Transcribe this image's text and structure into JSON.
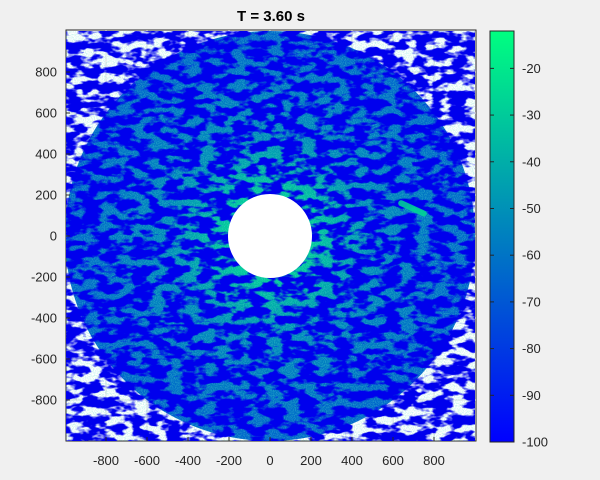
{
  "chart_data": {
    "type": "heatmap",
    "plot_kind": "polar-radar-intensity",
    "title": "T = 3.60 s",
    "xlabel": "",
    "ylabel": "",
    "xlim": [
      -1000,
      1000
    ],
    "ylim": [
      -1000,
      1000
    ],
    "x_ticks": [
      -800,
      -600,
      -400,
      -200,
      0,
      200,
      400,
      600,
      800
    ],
    "y_ticks": [
      -800,
      -600,
      -400,
      -200,
      0,
      200,
      400,
      600,
      800
    ],
    "grid": true,
    "outer_radius": 1000,
    "inner_radius": 205,
    "colorbar": {
      "range": [
        -100,
        -12
      ],
      "ticks": [
        -100,
        -90,
        -80,
        -70,
        -60,
        -50,
        -40,
        -30,
        -20
      ],
      "colors": [
        "#0000ff",
        "#00ff80"
      ]
    },
    "typical_level_near_center": -30,
    "typical_level_at_edge": -65,
    "streak": {
      "x_start": 640,
      "y_start": 160,
      "x_end": 750,
      "y_end": 110,
      "level": -25
    }
  }
}
